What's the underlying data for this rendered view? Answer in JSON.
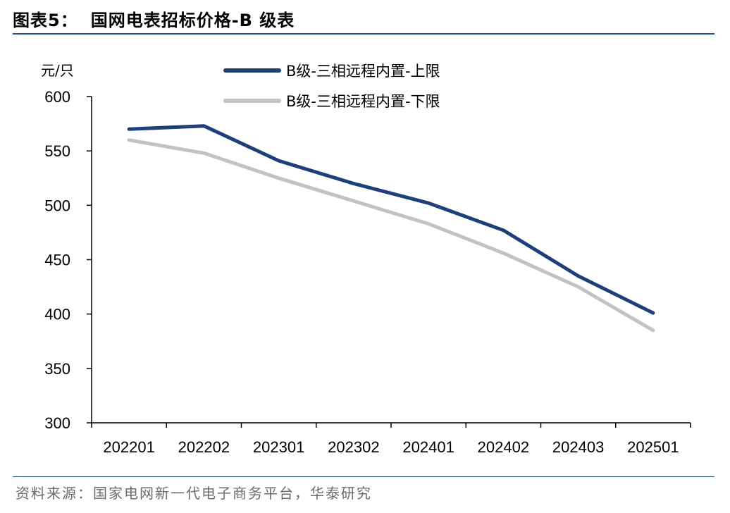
{
  "header": {
    "label": "图表5：",
    "title": "国网电表招标价格-B 级表"
  },
  "footer": {
    "source": "资料来源：国家电网新一代电子商务平台，华泰研究"
  },
  "chart_data": {
    "type": "line",
    "ylabel": "元/只",
    "categories": [
      "202201",
      "202202",
      "202301",
      "202302",
      "202401",
      "202402",
      "202403",
      "202501"
    ],
    "ylim": [
      300,
      600
    ],
    "yticks": [
      300,
      350,
      400,
      450,
      500,
      550,
      600
    ],
    "grid": false,
    "legend_position": "top",
    "series": [
      {
        "name": "B级-三相远程内置-上限",
        "color": "#1f3f7a",
        "values": [
          570,
          573,
          541,
          520,
          502,
          477,
          435,
          401
        ]
      },
      {
        "name": "B级-三相远程内置-下限",
        "color": "#c2c2c2",
        "values": [
          560,
          548,
          525,
          504,
          483,
          456,
          425,
          385
        ]
      }
    ]
  }
}
